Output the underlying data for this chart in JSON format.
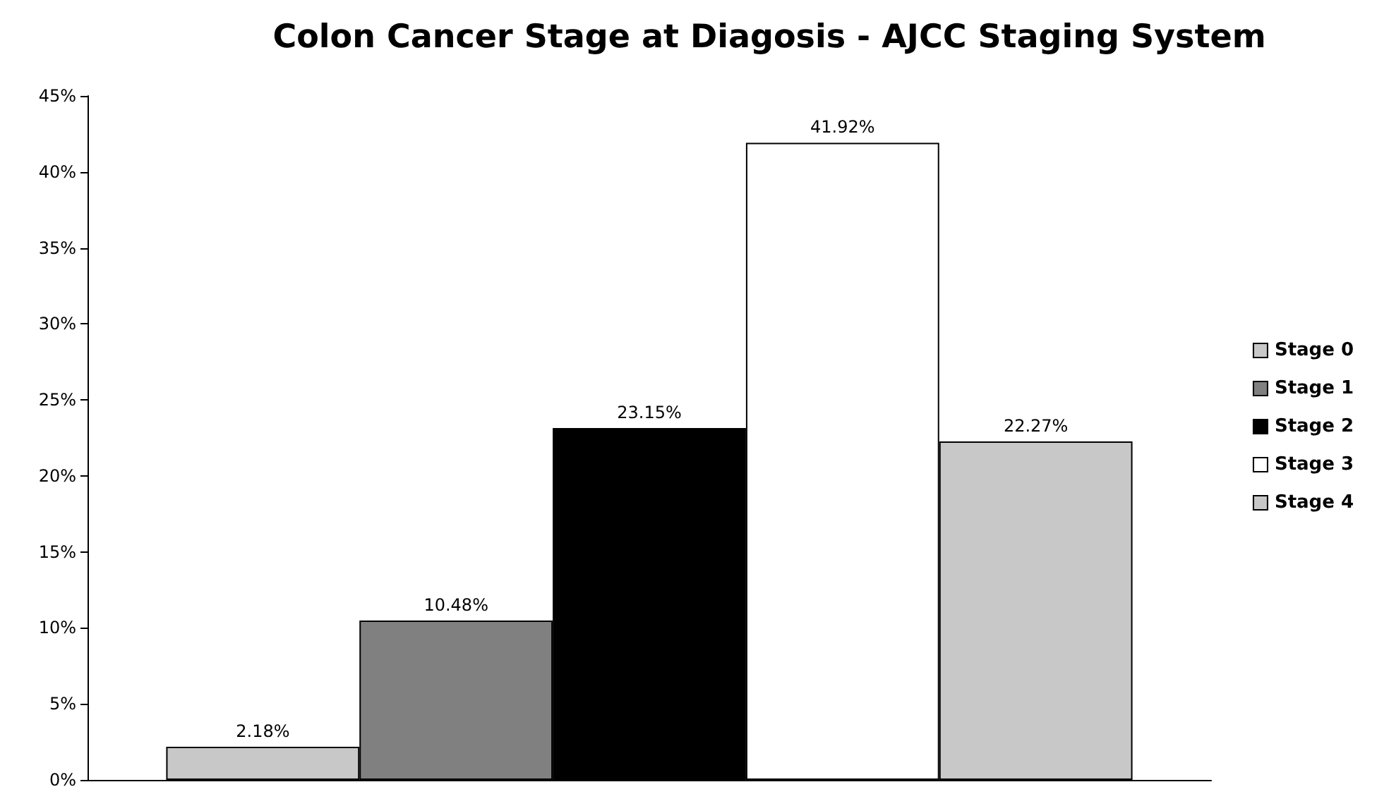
{
  "chart_data": {
    "type": "bar",
    "title": "Colon Cancer Stage at Diagosis - AJCC Staging System",
    "categories": [
      null
    ],
    "series": [
      {
        "name": "Stage 0",
        "color": "#c8c8c8",
        "values": [
          2.18
        ],
        "value_labels": [
          "2.18%"
        ]
      },
      {
        "name": "Stage 1",
        "color": "#808080",
        "values": [
          10.48
        ],
        "value_labels": [
          "10.48%"
        ]
      },
      {
        "name": "Stage 2",
        "color": "#000000",
        "values": [
          23.15
        ],
        "value_labels": [
          "23.15%"
        ]
      },
      {
        "name": "Stage 3",
        "color": "#ffffff",
        "values": [
          41.92
        ],
        "value_labels": [
          "41.92%"
        ]
      },
      {
        "name": "Stage 4",
        "color": "#c8c8c8",
        "values": [
          22.27
        ],
        "value_labels": [
          "22.27%"
        ]
      }
    ],
    "ylim": [
      0,
      45
    ],
    "yticks": [
      {
        "value": 0,
        "label": "0%"
      },
      {
        "value": 5,
        "label": "5%"
      },
      {
        "value": 10,
        "label": "10%"
      },
      {
        "value": 15,
        "label": "15%"
      },
      {
        "value": 20,
        "label": "20%"
      },
      {
        "value": 25,
        "label": "25%"
      },
      {
        "value": 30,
        "label": "30%"
      },
      {
        "value": 35,
        "label": "35%"
      },
      {
        "value": 40,
        "label": "40%"
      },
      {
        "value": 45,
        "label": "45%"
      }
    ],
    "grid": false,
    "legend": "right"
  }
}
